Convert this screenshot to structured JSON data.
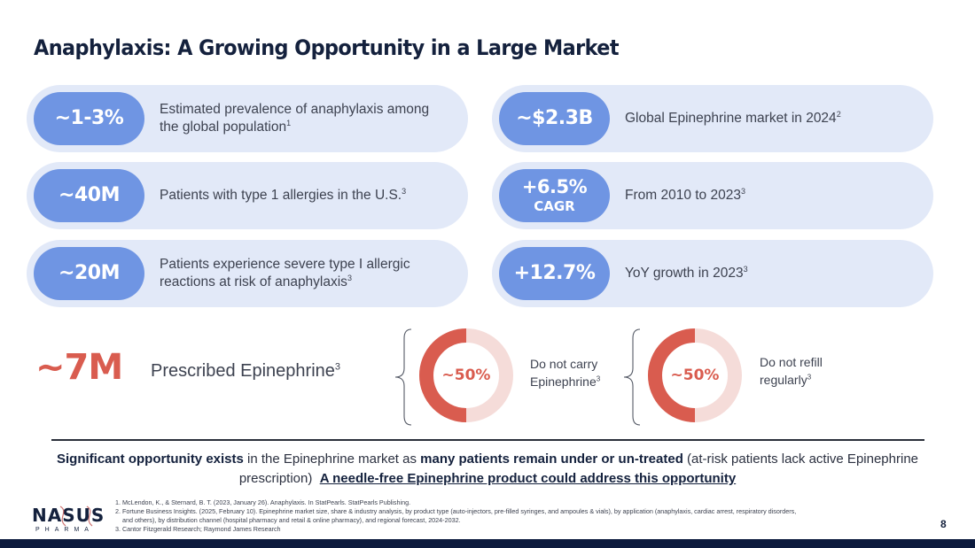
{
  "title": "Anaphylaxis: A Growing Opportunity in a Large Market",
  "colors": {
    "title": "#14213d",
    "card_bg": "#e2e9f8",
    "pill_bg": "#6f95e3",
    "accent_red": "#d95c4f",
    "donut_light": "#f5dcd9",
    "footer_bar": "#0d1b3e"
  },
  "left_cards": [
    {
      "stat": "~1-3%",
      "text": "Estimated prevalence of anaphylaxis among the global population",
      "footnote": "1"
    },
    {
      "stat": "~40M",
      "text": "Patients with type 1 allergies in the U.S.",
      "footnote": "3"
    },
    {
      "stat": "~20M",
      "text": "Patients experience severe type I allergic reactions at risk of anaphylaxis",
      "footnote": "3"
    }
  ],
  "right_cards": [
    {
      "stat": "~$2.3B",
      "sub": "",
      "text": "Global Epinephrine market in 2024",
      "footnote": "2"
    },
    {
      "stat": "+6.5%",
      "sub": "CAGR",
      "text": "From 2010 to 2023",
      "footnote": "3"
    },
    {
      "stat": "+12.7%",
      "sub": "",
      "text": "YoY growth in 2023",
      "footnote": "3"
    }
  ],
  "prescribed": {
    "stat": "~7M",
    "label": "Prescribed Epinephrine",
    "footnote": "3"
  },
  "donuts": [
    {
      "label": "~50%",
      "value_percent": 50,
      "caption_line1": "Do not carry",
      "caption_line2": "Epinephrine",
      "footnote": "3"
    },
    {
      "label": "~50%",
      "value_percent": 50,
      "caption_line1": "Do not refill",
      "caption_line2": "regularly",
      "footnote": "3"
    }
  ],
  "summary": {
    "bold1": "Significant opportunity exists",
    "text1": " in the Epinephrine market as ",
    "bold2": "many patients remain under or un-treated",
    "text2": " (at-risk patients lack active Epinephrine prescription)  ",
    "underlined": "A needle-free Epinephrine product could address this opportunity"
  },
  "logo": {
    "name": "NASUS",
    "sub": "PHARMA"
  },
  "references": [
    "1. McLendon, K., & Sternard, B. T. (2023, January 26). Anaphylaxis. In StatPearls. StatPearls Publishing.",
    "2. Fortune Business Insights. (2025, February 10). Epinephrine market size, share & industry analysis, by product type (auto-injectors, pre-filled syringes, and ampoules & vials), by application (anaphylaxis, cardiac arrest, respiratory disorders,",
    "and others), by distribution channel (hospital pharmacy and retail & online pharmacy), and regional forecast, 2024-2032.",
    "3. Cantor Fitzgerald Research; Raymond James Research"
  ],
  "page_number": "8"
}
